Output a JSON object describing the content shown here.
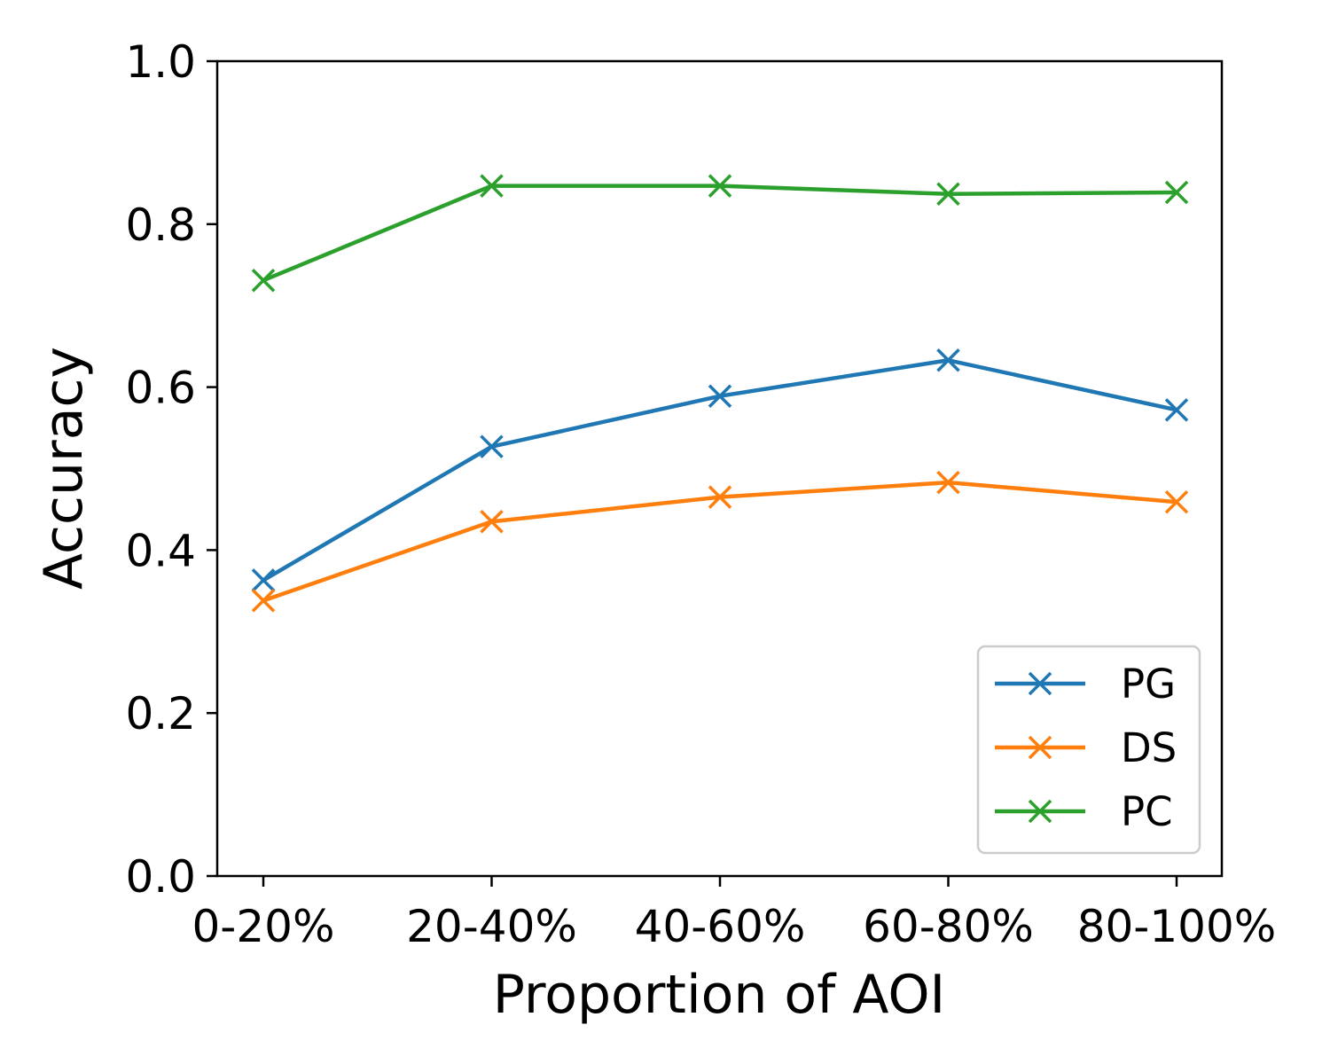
{
  "chart_data": {
    "type": "line",
    "title": "",
    "xlabel": "Proportion of AOI",
    "ylabel": "Accuracy",
    "categories": [
      "0-20%",
      "20-40%",
      "40-60%",
      "60-80%",
      "80-100%"
    ],
    "ylim": [
      0.0,
      1.0
    ],
    "yticks": [
      "0.0",
      "0.2",
      "0.4",
      "0.6",
      "0.8",
      "1.0"
    ],
    "grid": false,
    "legend_position": "lower-right",
    "marker": "x",
    "series": [
      {
        "name": "PG",
        "color": "#1f77b4",
        "values": [
          0.363,
          0.527,
          0.589,
          0.633,
          0.572
        ]
      },
      {
        "name": "DS",
        "color": "#ff7f0e",
        "values": [
          0.338,
          0.435,
          0.465,
          0.483,
          0.459
        ]
      },
      {
        "name": "PC",
        "color": "#2ca02c",
        "values": [
          0.731,
          0.847,
          0.847,
          0.837,
          0.839
        ]
      }
    ]
  }
}
